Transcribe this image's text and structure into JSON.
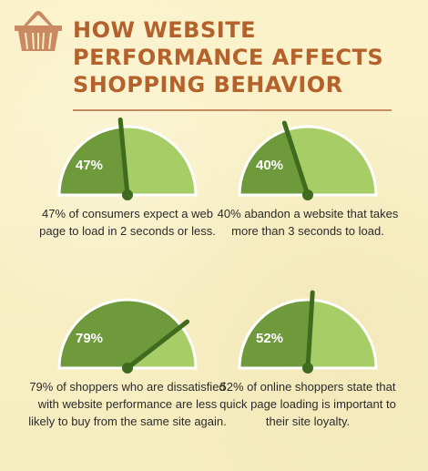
{
  "header": {
    "icon": "shopping-basket-icon",
    "title_lines": [
      "How Website",
      "Performance Affects",
      "Shopping Behavior"
    ]
  },
  "colors": {
    "title": "#b4612b",
    "rule": "#c78a62",
    "gauge_dark": "#6f9a3b",
    "gauge_light": "#a7cd66",
    "gauge_outline": "#ffffff",
    "needle": "#3f6b1f",
    "caption": "#2b2b2b"
  },
  "gauges": [
    {
      "percent": 47,
      "label": "47%",
      "caption": "47% of consumers expect a web page to load in 2 seconds or less."
    },
    {
      "percent": 40,
      "label": "40%",
      "caption": "40% abandon a website that takes more than 3 seconds to load."
    },
    {
      "percent": 79,
      "label": "79%",
      "caption": "79% of shoppers who are dissatisfied with website performance are less likely to buy from the same site again."
    },
    {
      "percent": 52,
      "label": "52%",
      "caption": "52% of online shoppers state that quick page loading is important to their site loyalty."
    }
  ]
}
